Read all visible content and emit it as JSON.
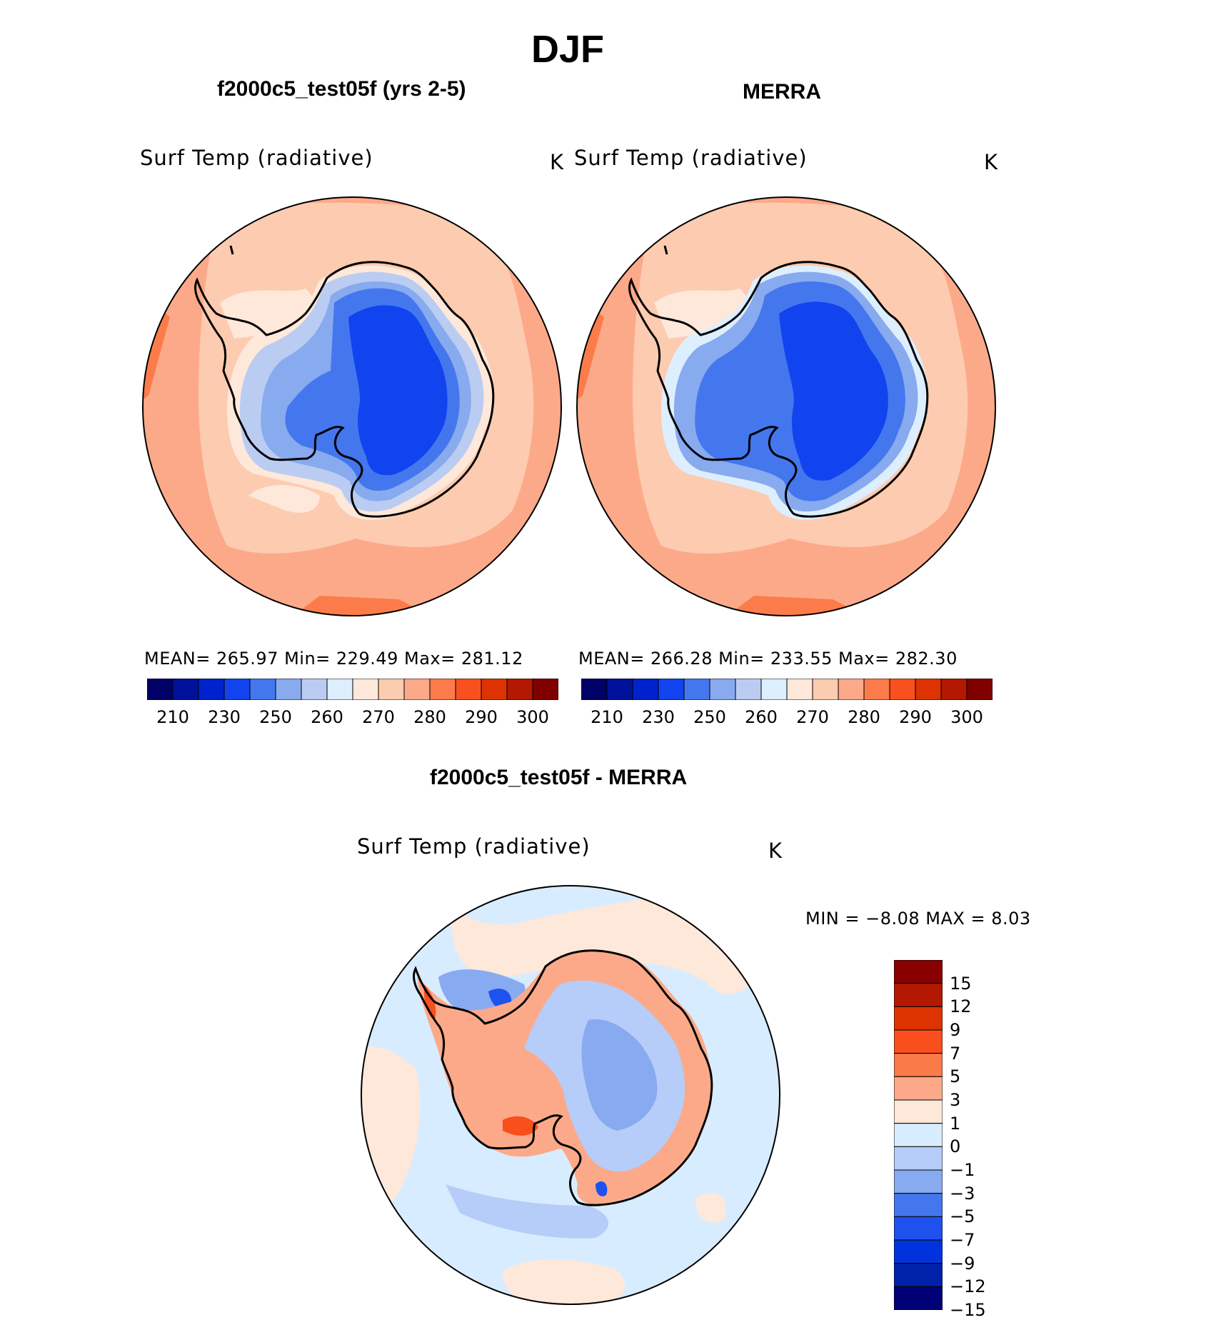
{
  "title": "DJF",
  "panels": [
    {
      "header": "f2000c5_test05f (yrs 2-5)",
      "variable": "Surf Temp (radiative)",
      "units": "K",
      "stats": "MEAN= 265.97   Min= 229.49   Max= 281.12"
    },
    {
      "header": "MERRA",
      "variable": "Surf Temp (radiative)",
      "units": "K",
      "stats": "MEAN= 266.28   Min= 233.55   Max= 282.30"
    }
  ],
  "difference": {
    "header": "f2000c5_test05f - MERRA",
    "variable": "Surf Temp (radiative)",
    "units": "K",
    "minmax": "MIN =    −8.08 MAX =     8.03"
  },
  "colorbar_top": {
    "colors": [
      "#000066",
      "#001199",
      "#0022cc",
      "#1144ee",
      "#4477ee",
      "#88aaee",
      "#bbccf2",
      "#ddeeff",
      "#fde8da",
      "#fdcbb0",
      "#fca98a",
      "#fb7c4a",
      "#f8501e",
      "#dd3300",
      "#b31800",
      "#800000"
    ],
    "ticks": [
      "210",
      "230",
      "250",
      "260",
      "270",
      "280",
      "290",
      "300"
    ]
  },
  "colorbar_diff": {
    "colors": [
      "#880000",
      "#b31800",
      "#dd3300",
      "#f84f1d",
      "#fb7b48",
      "#fca98a",
      "#fde8da",
      "#d8ecff",
      "#b5cdf8",
      "#88aaf0",
      "#4477ee",
      "#1f51ee",
      "#0033dd",
      "#0022aa",
      "#000077"
    ],
    "ticks": [
      "15",
      "12",
      "9",
      "7",
      "5",
      "3",
      "1",
      "0",
      "−1",
      "−3",
      "−5",
      "−7",
      "−9",
      "−12",
      "−15"
    ]
  }
}
